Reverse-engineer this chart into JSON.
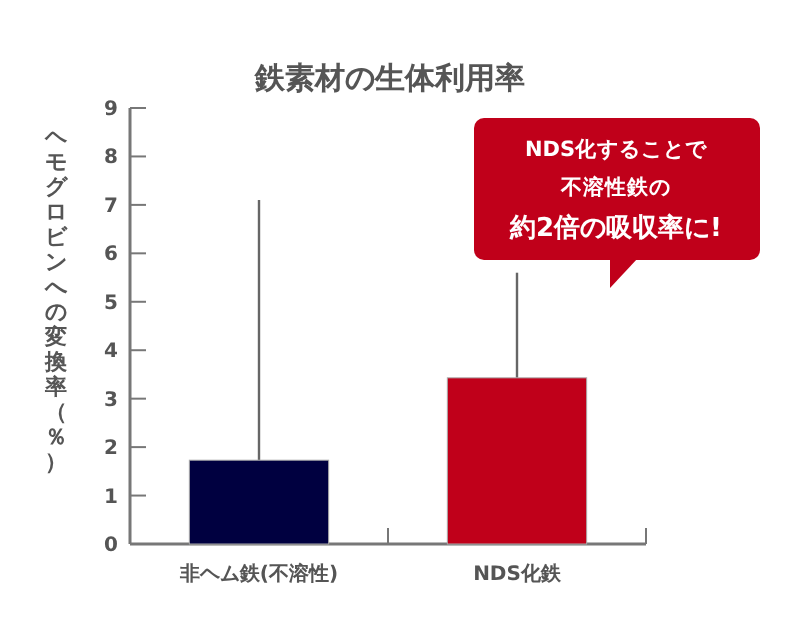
{
  "chart_data": {
    "type": "bar",
    "title": "鉄素材の生体利用率",
    "ylabel": "ヘモグロビンへの変換率（％）",
    "categories": [
      "非ヘム鉄(不溶性)",
      "NDS化鉄"
    ],
    "values": [
      1.73,
      3.43
    ],
    "colors": [
      "#000040",
      "#c0001a"
    ],
    "errors": [
      [
        1.73,
        7.1
      ],
      [
        3.43,
        5.6
      ]
    ],
    "ylim": [
      0,
      9
    ],
    "yticks": [
      0,
      1,
      2,
      3,
      4,
      5,
      6,
      7,
      8,
      9
    ],
    "grid": false,
    "annotations": [
      "NDS化することで不溶性鉄の約2倍の吸収率に!"
    ]
  }
}
